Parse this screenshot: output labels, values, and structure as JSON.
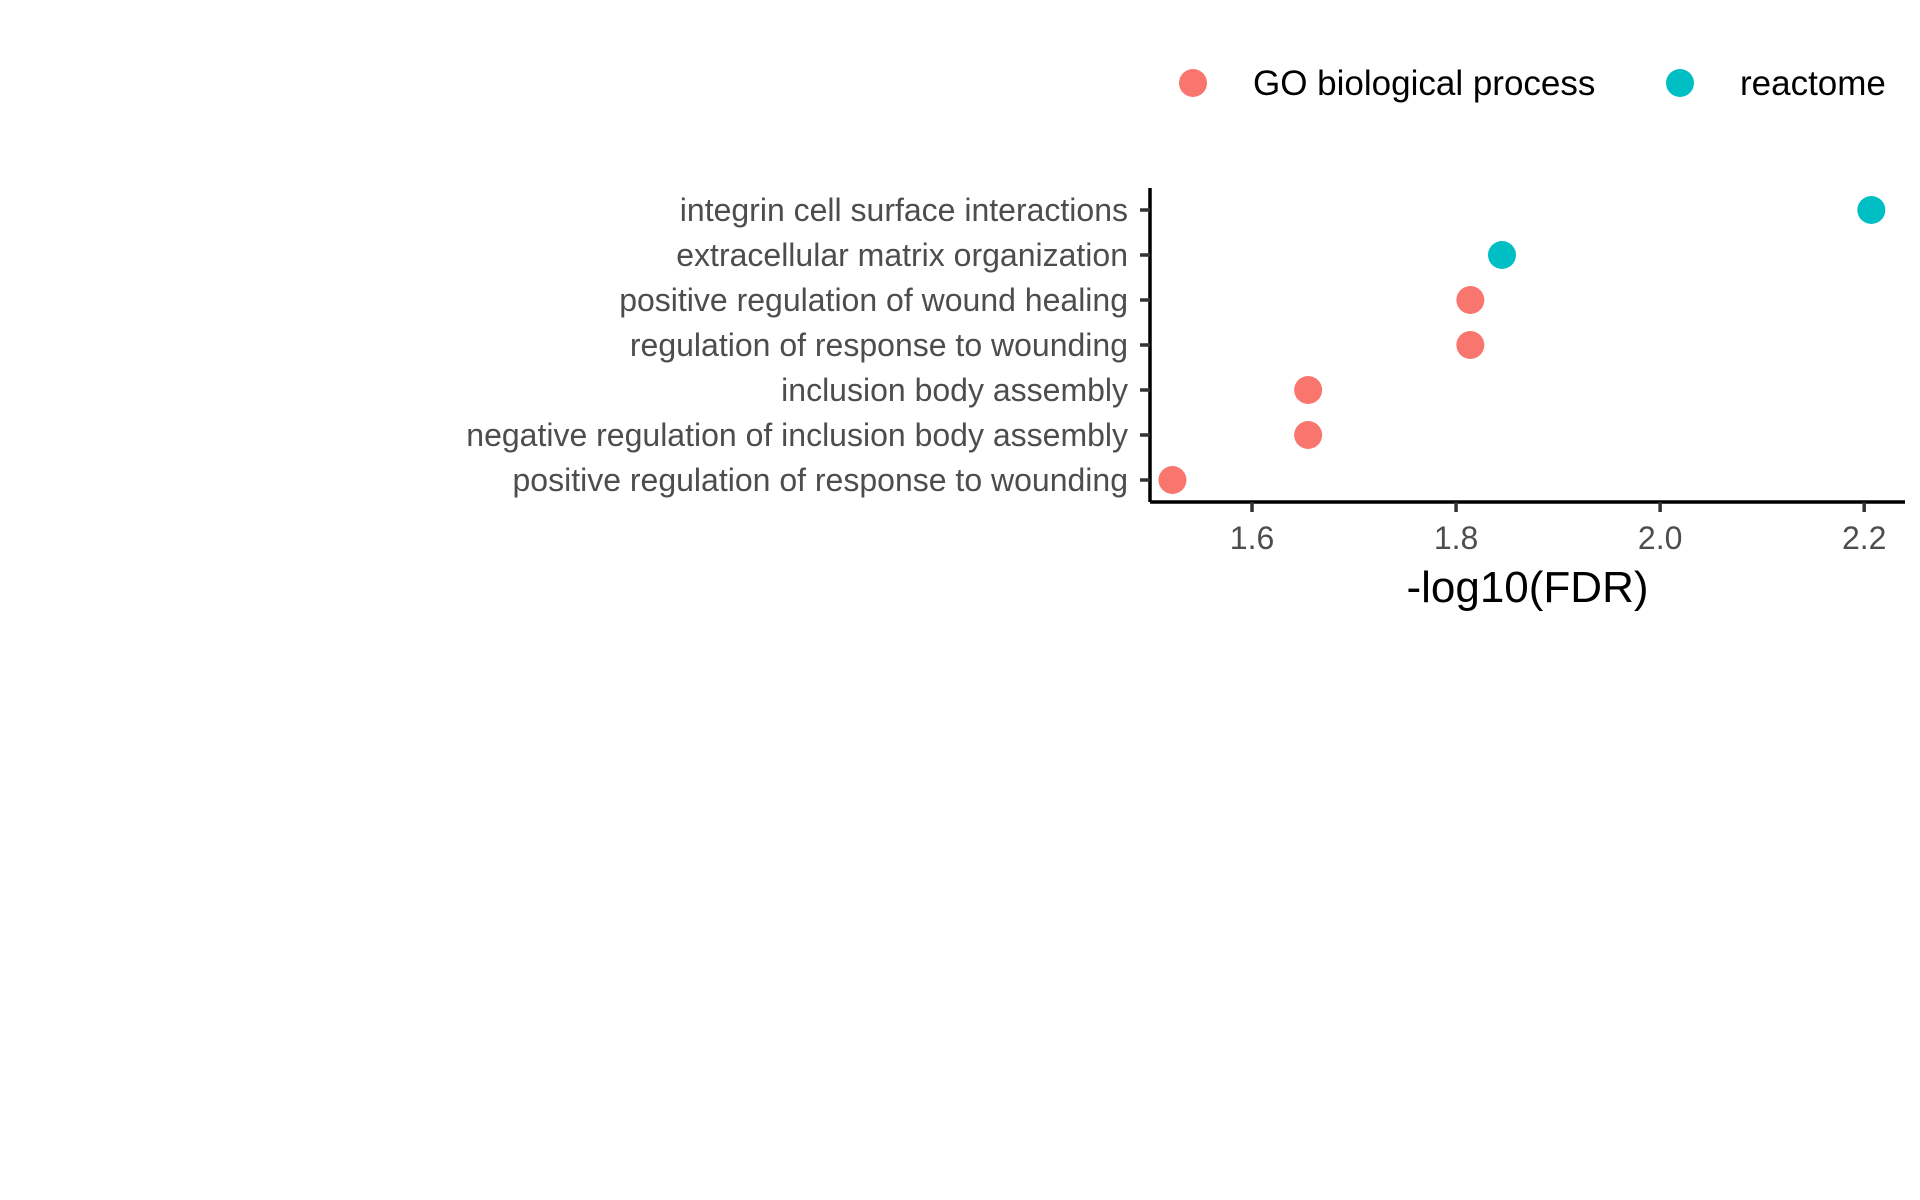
{
  "chart_data": {
    "type": "scatter",
    "xlabel": "-log10(FDR)",
    "ylabel": "",
    "title": "",
    "xlim": [
      1.5,
      2.24
    ],
    "x_ticks": [
      1.6,
      1.8,
      2.0,
      2.2
    ],
    "x_tick_labels": [
      "1.6",
      "1.8",
      "2.0",
      "2.2"
    ],
    "grid": false,
    "legend_position": "top-right",
    "categories": [
      "integrin cell surface interactions",
      "extracellular matrix organization",
      "positive regulation of wound healing",
      "regulation of response to wounding",
      "inclusion body assembly",
      "negative regulation of inclusion body assembly",
      "positive regulation of response to wounding"
    ],
    "series": [
      {
        "name": "GO biological process",
        "color": "#F8766D",
        "points": [
          {
            "category": "positive regulation of wound healing",
            "x": 1.814
          },
          {
            "category": "regulation of response to wounding",
            "x": 1.814
          },
          {
            "category": "inclusion body assembly",
            "x": 1.655
          },
          {
            "category": "negative regulation of inclusion body assembly",
            "x": 1.655
          },
          {
            "category": "positive regulation of response to wounding",
            "x": 1.522
          }
        ]
      },
      {
        "name": "reactome",
        "color": "#00BFC4",
        "points": [
          {
            "category": "integrin cell surface interactions",
            "x": 2.207
          },
          {
            "category": "extracellular matrix organization",
            "x": 1.845
          }
        ]
      }
    ]
  }
}
